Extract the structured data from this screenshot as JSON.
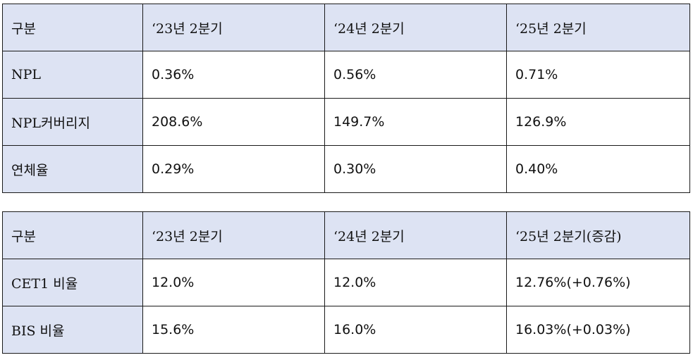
{
  "asset_quality_table": {
    "headers": [
      "구분",
      "‘23년 2분기",
      "‘24년 2분기",
      "‘25년 2분기"
    ],
    "rows": [
      {
        "label": "NPL",
        "values": [
          "0.36%",
          "0.56%",
          "0.71%"
        ]
      },
      {
        "label": "NPL커버리지",
        "values": [
          "208.6%",
          "149.7%",
          "126.9%"
        ]
      },
      {
        "label": "연체율",
        "values": [
          "0.29%",
          "0.30%",
          "0.40%"
        ]
      }
    ]
  },
  "capital_table": {
    "headers": [
      "구분",
      "‘23년 2분기",
      "‘24년 2분기",
      "‘25년 2분기(증감)"
    ],
    "rows": [
      {
        "label": "CET1 비율",
        "values": [
          "12.0%",
          "12.0%",
          "12.76%(+0.76%)"
        ]
      },
      {
        "label": "BIS 비율",
        "values": [
          "15.6%",
          "16.0%",
          "16.03%(+0.03%)"
        ]
      }
    ]
  },
  "colors": {
    "header_background": "#dde3f3",
    "border": "#1a1a1a",
    "text": "#111111"
  }
}
